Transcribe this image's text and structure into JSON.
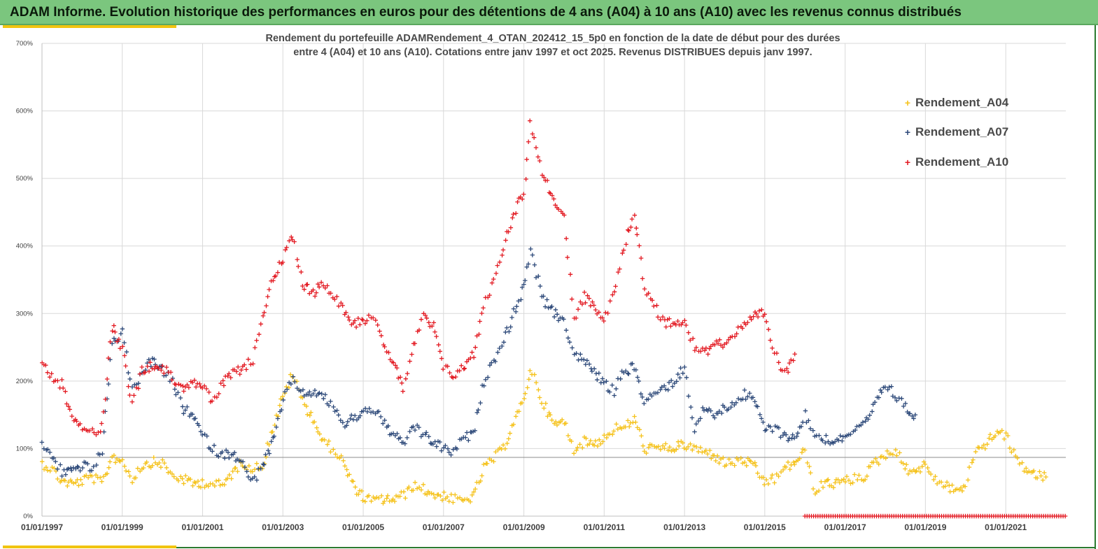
{
  "banner": {
    "title": "ADAM Informe. Evolution historique des performances en euros pour des détentions de 4 ans (A04) à 10 ans (A10) avec les revenus connus distribués"
  },
  "colors": {
    "banner_bg": "#7bc67e",
    "accent": "#f1c40f",
    "A04": "#f5c21b",
    "A07": "#2e4a7a",
    "A10": "#e31b23"
  },
  "chart_data": {
    "type": "scatter",
    "title_line1": "Rendement du portefeuille ADAMRendement_4_OTAN_202412_15_5p0  en fonction de la date de début pour des durées",
    "title_line2": "entre 4 (A04) et 10 ans (A10). Cotations entre janv 1997 et oct 2025. Revenus DISTRIBUES depuis janv 1997.",
    "xlabel": "",
    "ylabel": "",
    "x_ticks": [
      "01/01/1997",
      "01/01/1999",
      "01/01/2001",
      "01/01/2003",
      "01/01/2005",
      "01/01/2007",
      "01/01/2009",
      "01/01/2011",
      "01/01/2013",
      "01/01/2015",
      "01/01/2017",
      "01/01/2019",
      "01/01/2021"
    ],
    "xlim": [
      "1997-01-01",
      "2022-07-01"
    ],
    "y_ticks": [
      "0%",
      "100%",
      "200%",
      "300%",
      "400%",
      "500%",
      "600%",
      "700%"
    ],
    "ylim": [
      0,
      700
    ],
    "grid": true,
    "legend_position": "top-right",
    "reference_line_y": 87,
    "series": [
      {
        "name": "Rendement_A04",
        "color": "#f5c21b",
        "points": [
          [
            "1997-01-01",
            78
          ],
          [
            "1997-04-01",
            70
          ],
          [
            "1997-07-01",
            52
          ],
          [
            "1997-10-01",
            48
          ],
          [
            "1998-01-01",
            52
          ],
          [
            "1998-04-01",
            58
          ],
          [
            "1998-07-01",
            48
          ],
          [
            "1998-10-01",
            88
          ],
          [
            "1999-01-01",
            82
          ],
          [
            "1999-04-01",
            55
          ],
          [
            "1999-07-01",
            75
          ],
          [
            "1999-10-01",
            80
          ],
          [
            "2000-01-01",
            78
          ],
          [
            "2000-04-01",
            60
          ],
          [
            "2000-07-01",
            55
          ],
          [
            "2000-10-01",
            48
          ],
          [
            "2001-01-01",
            50
          ],
          [
            "2001-04-01",
            48
          ],
          [
            "2001-07-01",
            45
          ],
          [
            "2001-10-01",
            65
          ],
          [
            "2002-01-01",
            80
          ],
          [
            "2002-04-01",
            70
          ],
          [
            "2002-07-01",
            75
          ],
          [
            "2002-10-01",
            130
          ],
          [
            "2003-01-01",
            175
          ],
          [
            "2003-04-01",
            210
          ],
          [
            "2003-07-01",
            170
          ],
          [
            "2003-10-01",
            145
          ],
          [
            "2004-01-01",
            110
          ],
          [
            "2004-04-01",
            100
          ],
          [
            "2004-07-01",
            80
          ],
          [
            "2004-10-01",
            45
          ],
          [
            "2005-01-01",
            28
          ],
          [
            "2005-04-01",
            22
          ],
          [
            "2005-07-01",
            25
          ],
          [
            "2005-10-01",
            25
          ],
          [
            "2006-01-01",
            30
          ],
          [
            "2006-04-01",
            45
          ],
          [
            "2006-07-01",
            40
          ],
          [
            "2006-10-01",
            32
          ],
          [
            "2007-01-01",
            30
          ],
          [
            "2007-04-01",
            25
          ],
          [
            "2007-07-01",
            22
          ],
          [
            "2007-10-01",
            30
          ],
          [
            "2008-01-01",
            70
          ],
          [
            "2008-04-01",
            85
          ],
          [
            "2008-07-01",
            100
          ],
          [
            "2008-10-01",
            140
          ],
          [
            "2009-01-01",
            170
          ],
          [
            "2009-03-01",
            220
          ],
          [
            "2009-07-01",
            165
          ],
          [
            "2009-10-01",
            135
          ],
          [
            "2010-01-01",
            140
          ],
          [
            "2010-04-01",
            100
          ],
          [
            "2010-07-01",
            110
          ],
          [
            "2010-10-01",
            108
          ],
          [
            "2011-01-01",
            115
          ],
          [
            "2011-04-01",
            130
          ],
          [
            "2011-07-01",
            130
          ],
          [
            "2011-10-01",
            145
          ],
          [
            "2012-01-01",
            100
          ],
          [
            "2012-04-01",
            100
          ],
          [
            "2012-07-01",
            100
          ],
          [
            "2012-10-01",
            102
          ],
          [
            "2013-01-01",
            105
          ],
          [
            "2013-04-01",
            100
          ],
          [
            "2013-07-01",
            95
          ],
          [
            "2013-10-01",
            90
          ],
          [
            "2014-01-01",
            78
          ],
          [
            "2014-04-01",
            80
          ],
          [
            "2014-07-01",
            82
          ],
          [
            "2014-10-01",
            72
          ],
          [
            "2015-01-01",
            50
          ],
          [
            "2015-04-01",
            55
          ],
          [
            "2015-07-01",
            70
          ],
          [
            "2015-10-01",
            80
          ],
          [
            "2016-01-01",
            95
          ],
          [
            "2016-04-01",
            35
          ],
          [
            "2016-07-01",
            50
          ],
          [
            "2016-10-01",
            48
          ],
          [
            "2017-01-01",
            52
          ],
          [
            "2017-04-01",
            55
          ],
          [
            "2017-07-01",
            60
          ],
          [
            "2017-10-01",
            80
          ],
          [
            "2018-01-01",
            90
          ],
          [
            "2018-04-01",
            100
          ],
          [
            "2018-07-01",
            70
          ],
          [
            "2018-10-01",
            68
          ],
          [
            "2019-01-01",
            75
          ],
          [
            "2019-04-01",
            55
          ],
          [
            "2019-07-01",
            45
          ],
          [
            "2019-10-01",
            40
          ],
          [
            "2020-01-01",
            42
          ],
          [
            "2020-04-01",
            100
          ],
          [
            "2020-07-01",
            105
          ],
          [
            "2020-10-01",
            125
          ],
          [
            "2021-01-01",
            120
          ],
          [
            "2021-04-01",
            85
          ],
          [
            "2021-07-01",
            70
          ],
          [
            "2021-10-01",
            60
          ],
          [
            "2022-01-01",
            58
          ]
        ]
      },
      {
        "name": "Rendement_A07",
        "color": "#2e4a7a",
        "points": [
          [
            "1997-01-01",
            105
          ],
          [
            "1997-04-01",
            90
          ],
          [
            "1997-07-01",
            65
          ],
          [
            "1997-10-01",
            68
          ],
          [
            "1998-01-01",
            75
          ],
          [
            "1998-04-01",
            70
          ],
          [
            "1998-07-01",
            95
          ],
          [
            "1998-10-01",
            255
          ],
          [
            "1999-01-01",
            270
          ],
          [
            "1999-04-01",
            185
          ],
          [
            "1999-07-01",
            215
          ],
          [
            "1999-10-01",
            230
          ],
          [
            "2000-01-01",
            215
          ],
          [
            "2000-04-01",
            200
          ],
          [
            "2000-07-01",
            160
          ],
          [
            "2000-10-01",
            150
          ],
          [
            "2001-01-01",
            120
          ],
          [
            "2001-04-01",
            100
          ],
          [
            "2001-07-01",
            90
          ],
          [
            "2001-10-01",
            95
          ],
          [
            "2002-01-01",
            75
          ],
          [
            "2002-04-01",
            50
          ],
          [
            "2002-07-01",
            75
          ],
          [
            "2002-10-01",
            110
          ],
          [
            "2003-01-01",
            170
          ],
          [
            "2003-04-01",
            205
          ],
          [
            "2003-07-01",
            180
          ],
          [
            "2003-10-01",
            185
          ],
          [
            "2004-01-01",
            175
          ],
          [
            "2004-04-01",
            165
          ],
          [
            "2004-07-01",
            135
          ],
          [
            "2004-10-01",
            145
          ],
          [
            "2005-01-01",
            155
          ],
          [
            "2005-04-01",
            160
          ],
          [
            "2005-07-01",
            140
          ],
          [
            "2005-10-01",
            120
          ],
          [
            "2006-01-01",
            105
          ],
          [
            "2006-04-01",
            135
          ],
          [
            "2006-07-01",
            120
          ],
          [
            "2006-10-01",
            110
          ],
          [
            "2007-01-01",
            100
          ],
          [
            "2007-04-01",
            95
          ],
          [
            "2007-07-01",
            115
          ],
          [
            "2007-10-01",
            120
          ],
          [
            "2008-01-01",
            200
          ],
          [
            "2008-04-01",
            230
          ],
          [
            "2008-07-01",
            260
          ],
          [
            "2008-10-01",
            300
          ],
          [
            "2009-01-01",
            340
          ],
          [
            "2009-03-01",
            390
          ],
          [
            "2009-07-01",
            320
          ],
          [
            "2009-10-01",
            300
          ],
          [
            "2010-01-01",
            290
          ],
          [
            "2010-04-01",
            240
          ],
          [
            "2010-07-01",
            230
          ],
          [
            "2010-10-01",
            215
          ],
          [
            "2011-01-01",
            195
          ],
          [
            "2011-04-01",
            185
          ],
          [
            "2011-07-01",
            215
          ],
          [
            "2011-10-01",
            220
          ],
          [
            "2012-01-01",
            170
          ],
          [
            "2012-04-01",
            180
          ],
          [
            "2012-07-01",
            190
          ],
          [
            "2012-10-01",
            200
          ],
          [
            "2013-01-01",
            220
          ],
          [
            "2013-04-01",
            130
          ],
          [
            "2013-07-01",
            160
          ],
          [
            "2013-10-01",
            150
          ],
          [
            "2014-01-01",
            160
          ],
          [
            "2014-04-01",
            170
          ],
          [
            "2014-07-01",
            180
          ],
          [
            "2014-10-01",
            170
          ],
          [
            "2015-01-01",
            130
          ],
          [
            "2015-04-01",
            130
          ],
          [
            "2015-07-01",
            120
          ],
          [
            "2015-10-01",
            115
          ],
          [
            "2016-01-01",
            150
          ],
          [
            "2016-04-01",
            120
          ],
          [
            "2016-07-01",
            115
          ],
          [
            "2016-10-01",
            110
          ],
          [
            "2017-01-01",
            120
          ],
          [
            "2017-04-01",
            125
          ],
          [
            "2017-07-01",
            135
          ],
          [
            "2017-10-01",
            165
          ],
          [
            "2018-01-01",
            195
          ],
          [
            "2018-04-01",
            180
          ],
          [
            "2018-07-01",
            160
          ],
          [
            "2018-10-01",
            150
          ]
        ]
      },
      {
        "name": "Rendement_A10",
        "color": "#e31b23",
        "points": [
          [
            "1997-01-01",
            230
          ],
          [
            "1997-04-01",
            205
          ],
          [
            "1997-07-01",
            195
          ],
          [
            "1997-10-01",
            150
          ],
          [
            "1998-01-01",
            135
          ],
          [
            "1998-04-01",
            125
          ],
          [
            "1998-07-01",
            130
          ],
          [
            "1998-10-01",
            280
          ],
          [
            "1999-01-01",
            250
          ],
          [
            "1999-04-01",
            165
          ],
          [
            "1999-07-01",
            215
          ],
          [
            "1999-10-01",
            225
          ],
          [
            "2000-01-01",
            220
          ],
          [
            "2000-04-01",
            205
          ],
          [
            "2000-07-01",
            190
          ],
          [
            "2000-10-01",
            200
          ],
          [
            "2001-01-01",
            190
          ],
          [
            "2001-04-01",
            170
          ],
          [
            "2001-07-01",
            195
          ],
          [
            "2001-10-01",
            210
          ],
          [
            "2002-01-01",
            220
          ],
          [
            "2002-04-01",
            230
          ],
          [
            "2002-07-01",
            300
          ],
          [
            "2002-10-01",
            350
          ],
          [
            "2003-01-01",
            380
          ],
          [
            "2003-04-01",
            415
          ],
          [
            "2003-07-01",
            345
          ],
          [
            "2003-10-01",
            330
          ],
          [
            "2004-01-01",
            345
          ],
          [
            "2004-04-01",
            330
          ],
          [
            "2004-07-01",
            310
          ],
          [
            "2004-10-01",
            285
          ],
          [
            "2005-01-01",
            290
          ],
          [
            "2005-04-01",
            300
          ],
          [
            "2005-07-01",
            250
          ],
          [
            "2005-10-01",
            230
          ],
          [
            "2006-01-01",
            190
          ],
          [
            "2006-04-01",
            250
          ],
          [
            "2006-07-01",
            295
          ],
          [
            "2006-10-01",
            280
          ],
          [
            "2007-01-01",
            220
          ],
          [
            "2007-04-01",
            210
          ],
          [
            "2007-07-01",
            220
          ],
          [
            "2007-10-01",
            240
          ],
          [
            "2008-01-01",
            310
          ],
          [
            "2008-04-01",
            350
          ],
          [
            "2008-07-01",
            400
          ],
          [
            "2008-10-01",
            450
          ],
          [
            "2009-01-01",
            480
          ],
          [
            "2009-03-01",
            580
          ],
          [
            "2009-07-01",
            500
          ],
          [
            "2009-10-01",
            470
          ],
          [
            "2010-01-01",
            445
          ],
          [
            "2010-04-01",
            290
          ],
          [
            "2010-07-01",
            325
          ],
          [
            "2010-10-01",
            310
          ],
          [
            "2011-01-01",
            290
          ],
          [
            "2011-04-01",
            330
          ],
          [
            "2011-07-01",
            400
          ],
          [
            "2011-10-01",
            450
          ],
          [
            "2012-01-01",
            340
          ],
          [
            "2012-04-01",
            310
          ],
          [
            "2012-07-01",
            285
          ],
          [
            "2012-10-01",
            290
          ],
          [
            "2013-01-01",
            290
          ],
          [
            "2013-04-01",
            250
          ],
          [
            "2013-07-01",
            240
          ],
          [
            "2013-10-01",
            260
          ],
          [
            "2014-01-01",
            255
          ],
          [
            "2014-04-01",
            270
          ],
          [
            "2014-07-01",
            280
          ],
          [
            "2014-10-01",
            295
          ],
          [
            "2015-01-01",
            300
          ],
          [
            "2015-04-01",
            240
          ],
          [
            "2015-07-01",
            210
          ],
          [
            "2015-10-01",
            240
          ]
        ]
      }
    ],
    "zero_points_a10_from": "2016-01-01"
  }
}
